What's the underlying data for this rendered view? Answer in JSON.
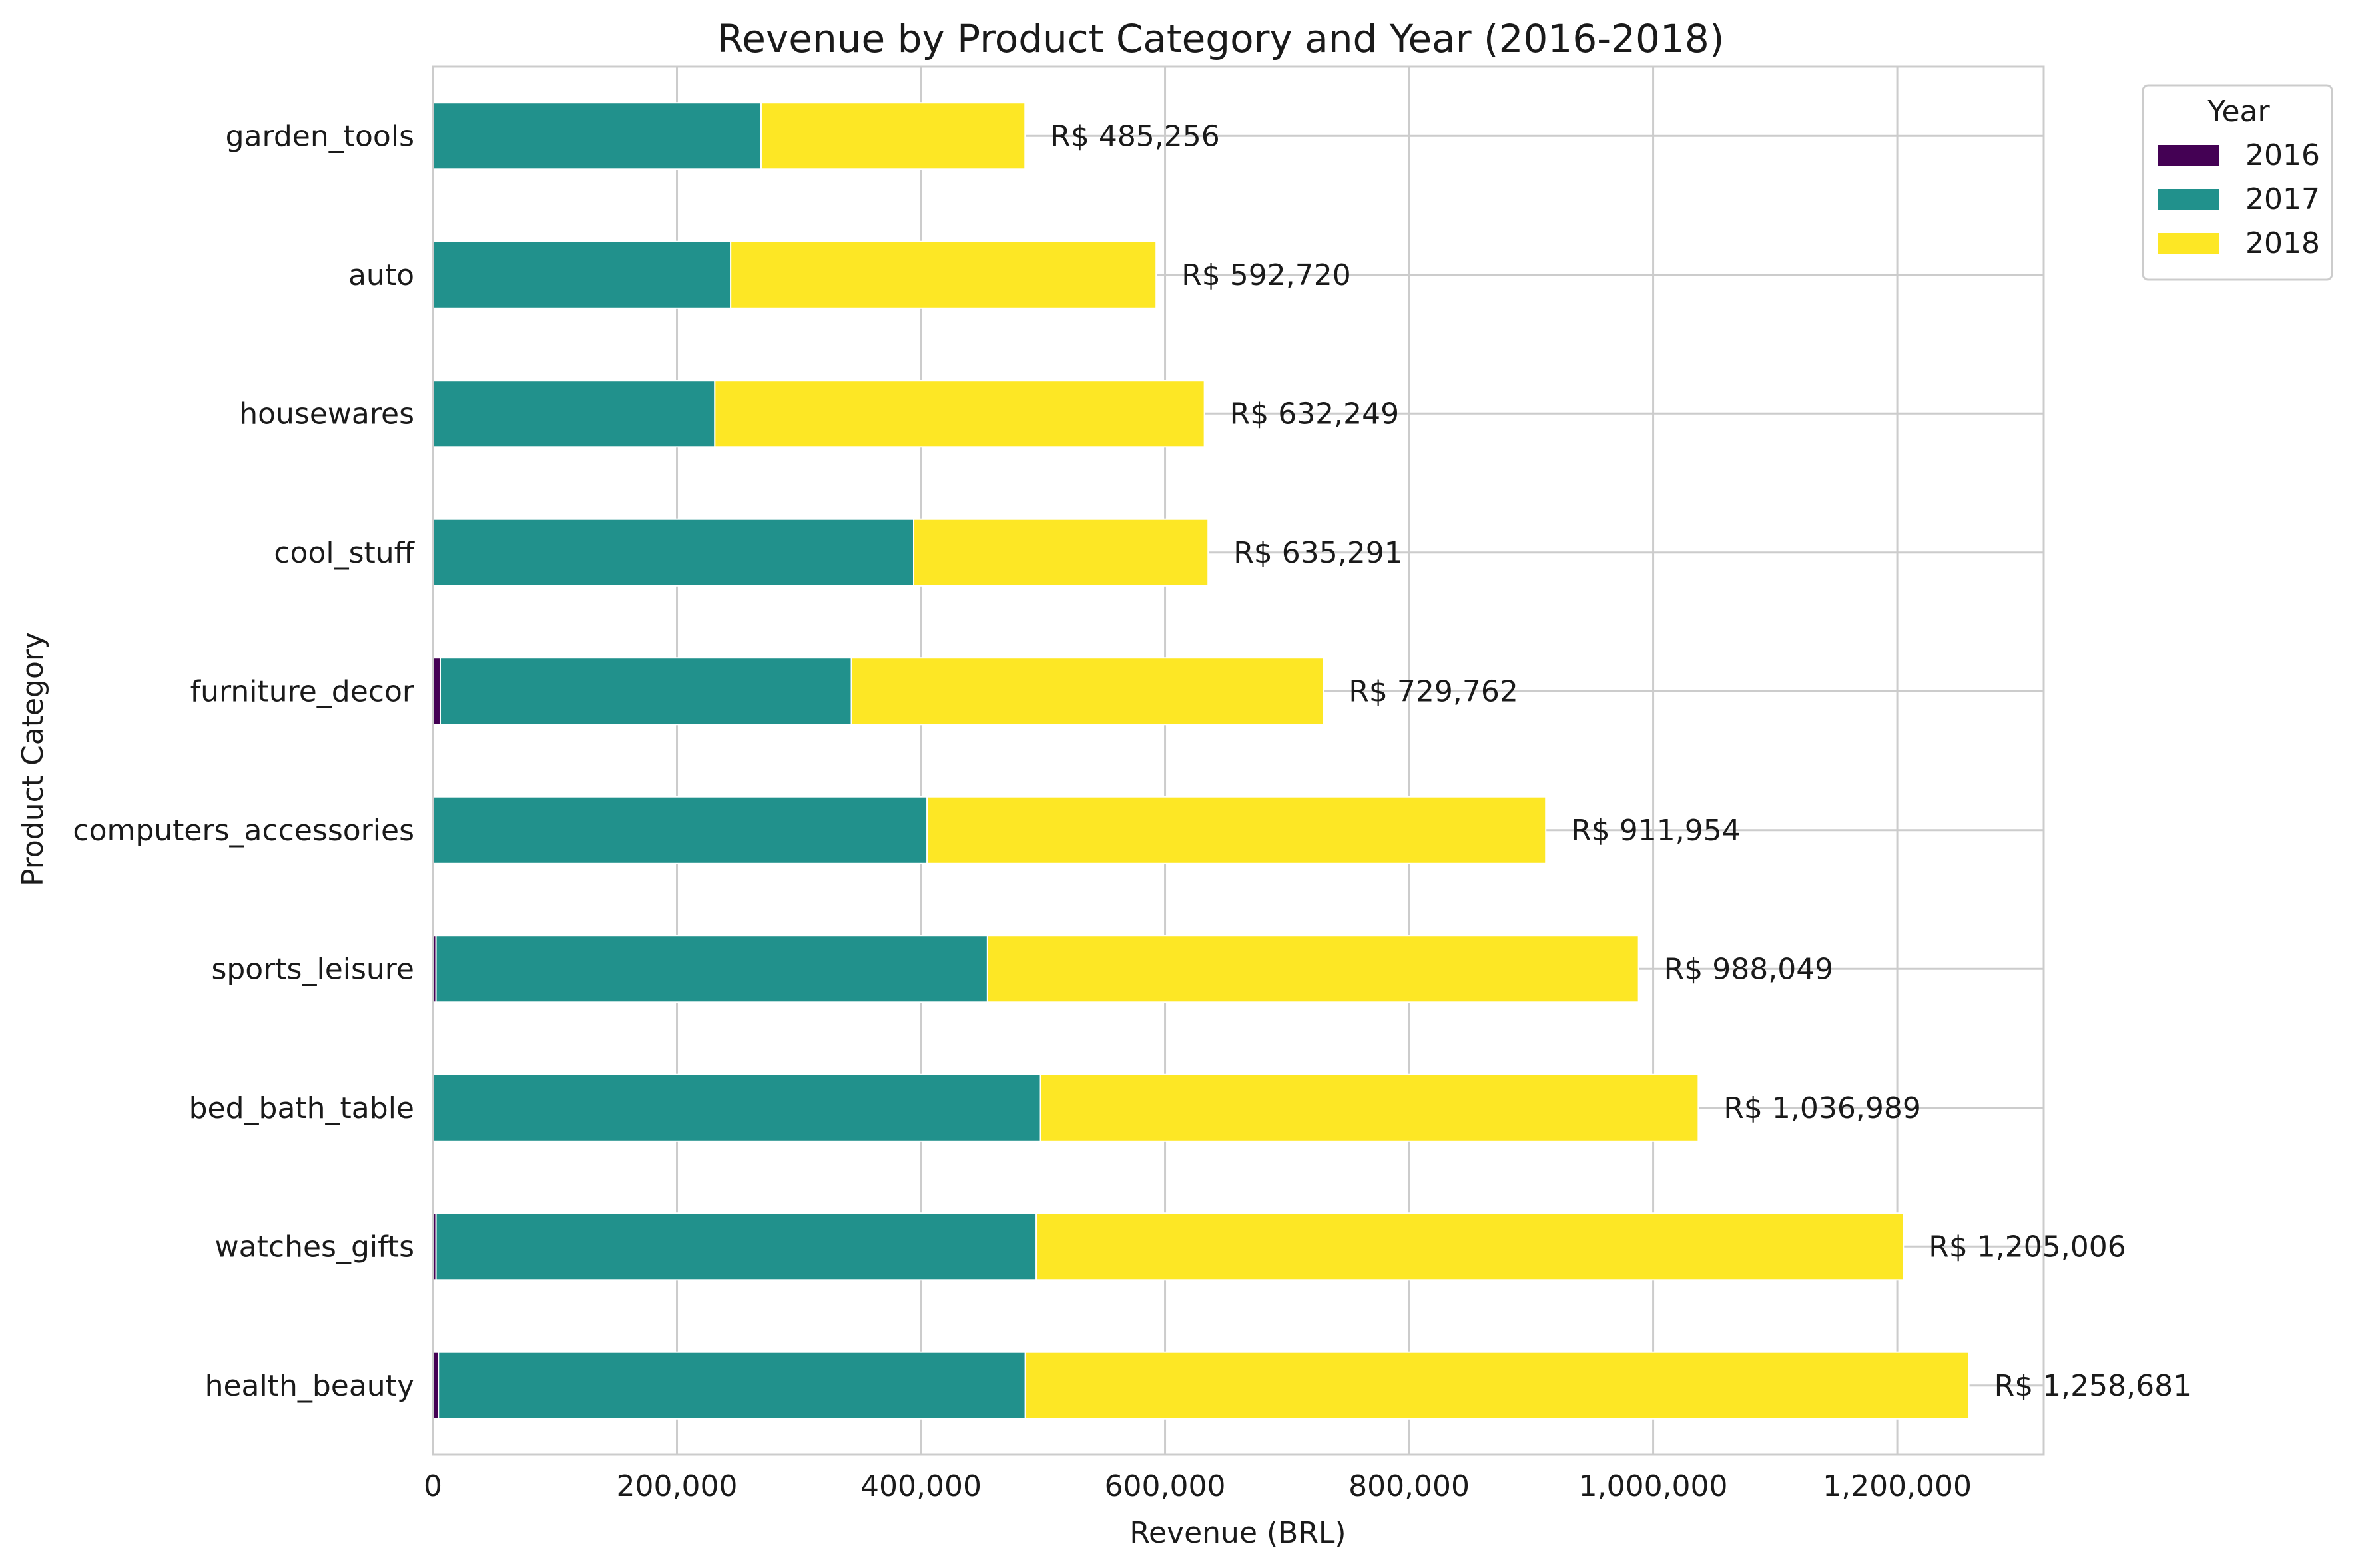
{
  "chart_data": {
    "type": "bar",
    "orientation": "horizontal",
    "stacked": true,
    "title": "Revenue by Product Category and Year (2016-2018)",
    "xlabel": "Revenue (BRL)",
    "ylabel": "Product Category",
    "xlim": [
      0,
      1320000
    ],
    "xticks": [
      0,
      200000,
      400000,
      600000,
      800000,
      1000000,
      1200000
    ],
    "xtick_labels": [
      "0",
      "200,000",
      "400,000",
      "600,000",
      "800,000",
      "1,000,000",
      "1,200,000"
    ],
    "grid": true,
    "legend": {
      "title": "Year",
      "position": "outside-top-right"
    },
    "categories": [
      "garden_tools",
      "auto",
      "housewares",
      "cool_stuff",
      "furniture_decor",
      "computers_accessories",
      "sports_leisure",
      "bed_bath_table",
      "watches_gifts",
      "health_beauty"
    ],
    "series": [
      {
        "name": "2016",
        "color": "#440154",
        "values": [
          0,
          0,
          0,
          0,
          6000,
          0,
          2500,
          0,
          2500,
          4500
        ]
      },
      {
        "name": "2017",
        "color": "#21918c",
        "values": [
          269000,
          244000,
          231000,
          394000,
          337000,
          405000,
          452000,
          498000,
          492000,
          481000
        ]
      },
      {
        "name": "2018",
        "color": "#fde725",
        "values": [
          216256,
          348720,
          401249,
          241291,
          386762,
          506954,
          533549,
          538989,
          710506,
          773181
        ]
      }
    ],
    "totals": [
      485256,
      592720,
      632249,
      635291,
      729762,
      911954,
      988049,
      1036989,
      1205006,
      1258681
    ],
    "total_labels": [
      "R$ 485,256",
      "R$ 592,720",
      "R$ 632,249",
      "R$ 635,291",
      "R$ 729,762",
      "R$ 911,954",
      "R$ 988,049",
      "R$ 1,036,989",
      "R$ 1,205,006",
      "R$ 1,258,681"
    ]
  }
}
